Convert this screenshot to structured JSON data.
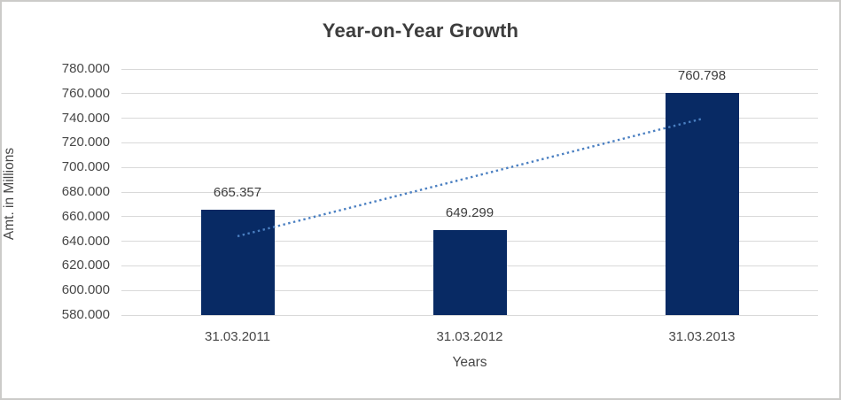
{
  "chart_data": {
    "type": "bar",
    "title": "Year-on-Year Growth",
    "xlabel": "Years",
    "ylabel": "Amt. in Millions",
    "categories": [
      "31.03.2011",
      "31.03.2012",
      "31.03.2013"
    ],
    "values": [
      665357,
      649299,
      760798
    ],
    "data_labels": [
      "665.357",
      "649.299",
      "760.798"
    ],
    "ylim": [
      580000,
      780000
    ],
    "ytick_step": 20000,
    "ytick_labels": [
      "780.000",
      "760.000",
      "740.000",
      "720.000",
      "700.000",
      "680.000",
      "660.000",
      "640.000",
      "620.000",
      "600.000",
      "580.000"
    ],
    "ytick_values": [
      780000,
      760000,
      740000,
      720000,
      700000,
      680000,
      660000,
      640000,
      620000,
      600000,
      580000
    ],
    "grid": true,
    "legend_position": "none",
    "trendline": {
      "type": "linear",
      "style": "dotted",
      "endpoint_values": [
        644100,
        739500
      ]
    },
    "colors": {
      "bar": "#082a64",
      "gridline": "#d9d9d9",
      "trendline": "#4a7fc1",
      "title_text": "#3d3d3d",
      "axis_text": "#474747",
      "frame_border": "#cccbc9",
      "background": "#ffffff"
    }
  }
}
